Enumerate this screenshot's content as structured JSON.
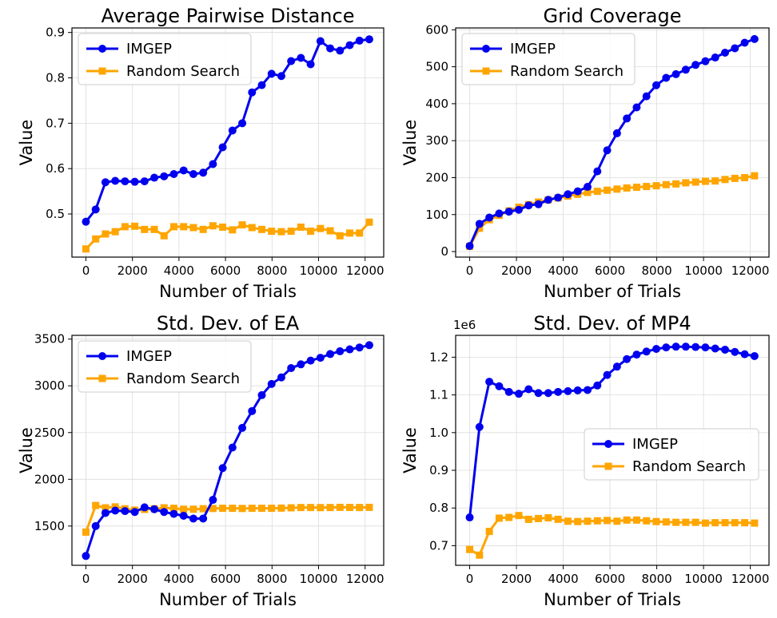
{
  "figure": {
    "legend_labels": [
      "IMGEP",
      "Random Search"
    ],
    "series_colors": {
      "IMGEP": "#0000ee",
      "Random Search": "#ffa500"
    }
  },
  "chart_data": [
    {
      "type": "line",
      "title": "Average Pairwise Distance",
      "xlabel": "Number of Trials",
      "ylabel": "Value",
      "xlim": [
        -600,
        12800
      ],
      "ylim": [
        0.405,
        0.91
      ],
      "xticks": [
        0,
        2000,
        4000,
        6000,
        8000,
        10000,
        12000
      ],
      "xtick_labels": [
        "0",
        "2000",
        "4000",
        "6000",
        "8000",
        "10000",
        "12000"
      ],
      "yticks": [
        0.5,
        0.6,
        0.7,
        0.8,
        0.9
      ],
      "ytick_labels": [
        "0.5",
        "0.6",
        "0.7",
        "0.8",
        "0.9"
      ],
      "legend_position": "upper-left",
      "grid": true,
      "x": [
        0,
        420,
        840,
        1260,
        1680,
        2100,
        2520,
        2940,
        3360,
        3780,
        4200,
        4620,
        5040,
        5460,
        5880,
        6300,
        6720,
        7140,
        7560,
        7980,
        8400,
        8820,
        9240,
        9660,
        10080,
        10500,
        10920,
        11340,
        11760,
        12180
      ],
      "series": [
        {
          "name": "IMGEP",
          "values": [
            0.483,
            0.51,
            0.57,
            0.573,
            0.572,
            0.571,
            0.572,
            0.58,
            0.583,
            0.588,
            0.596,
            0.588,
            0.591,
            0.61,
            0.647,
            0.684,
            0.7,
            0.768,
            0.784,
            0.809,
            0.804,
            0.837,
            0.844,
            0.83,
            0.881,
            0.865,
            0.86,
            0.872,
            0.882,
            0.885
          ]
        },
        {
          "name": "Random Search",
          "values": [
            0.423,
            0.445,
            0.456,
            0.461,
            0.472,
            0.473,
            0.466,
            0.466,
            0.452,
            0.472,
            0.472,
            0.47,
            0.466,
            0.474,
            0.471,
            0.465,
            0.476,
            0.47,
            0.466,
            0.462,
            0.461,
            0.462,
            0.471,
            0.462,
            0.468,
            0.463,
            0.452,
            0.458,
            0.458,
            0.482
          ]
        }
      ]
    },
    {
      "type": "line",
      "title": "Grid Coverage",
      "xlabel": "Number of Trials",
      "ylabel": "Value",
      "xlim": [
        -600,
        12800
      ],
      "ylim": [
        -15,
        605
      ],
      "xticks": [
        0,
        2000,
        4000,
        6000,
        8000,
        10000,
        12000
      ],
      "xtick_labels": [
        "0",
        "2000",
        "4000",
        "6000",
        "8000",
        "10000",
        "12000"
      ],
      "yticks": [
        0,
        100,
        200,
        300,
        400,
        500,
        600
      ],
      "ytick_labels": [
        "0",
        "100",
        "200",
        "300",
        "400",
        "500",
        "600"
      ],
      "legend_position": "upper-left",
      "grid": true,
      "x": [
        0,
        420,
        840,
        1260,
        1680,
        2100,
        2520,
        2940,
        3360,
        3780,
        4200,
        4620,
        5040,
        5460,
        5880,
        6300,
        6720,
        7140,
        7560,
        7980,
        8400,
        8820,
        9240,
        9660,
        10080,
        10500,
        10920,
        11340,
        11760,
        12180
      ],
      "series": [
        {
          "name": "IMGEP",
          "values": [
            15,
            75,
            92,
            103,
            108,
            113,
            125,
            128,
            140,
            146,
            155,
            163,
            175,
            217,
            274,
            320,
            360,
            390,
            420,
            450,
            470,
            480,
            492,
            505,
            515,
            525,
            538,
            550,
            565,
            575
          ]
        },
        {
          "name": "Random Search",
          "values": [
            14,
            63,
            86,
            98,
            110,
            120,
            127,
            134,
            140,
            145,
            150,
            155,
            160,
            163,
            166,
            169,
            172,
            174,
            176,
            178,
            181,
            183,
            186,
            188,
            190,
            191,
            195,
            198,
            200,
            205
          ]
        }
      ]
    },
    {
      "type": "line",
      "title": "Std. Dev. of EA",
      "xlabel": "Number of Trials",
      "ylabel": "Value",
      "xlim": [
        -600,
        12800
      ],
      "ylim": [
        1080,
        3540
      ],
      "xticks": [
        0,
        2000,
        4000,
        6000,
        8000,
        10000,
        12000
      ],
      "xtick_labels": [
        "0",
        "2000",
        "4000",
        "6000",
        "8000",
        "10000",
        "12000"
      ],
      "yticks": [
        1500,
        2000,
        2500,
        3000,
        3500
      ],
      "ytick_labels": [
        "1500",
        "2000",
        "2500",
        "3000",
        "3500"
      ],
      "legend_position": "upper-left",
      "grid": true,
      "x": [
        0,
        420,
        840,
        1260,
        1680,
        2100,
        2520,
        2940,
        3360,
        3780,
        4200,
        4620,
        5040,
        5460,
        5880,
        6300,
        6720,
        7140,
        7560,
        7980,
        8400,
        8820,
        9240,
        9660,
        10080,
        10500,
        10920,
        11340,
        11760,
        12180
      ],
      "series": [
        {
          "name": "IMGEP",
          "values": [
            1180,
            1500,
            1640,
            1665,
            1660,
            1650,
            1700,
            1680,
            1650,
            1630,
            1610,
            1580,
            1580,
            1780,
            2120,
            2340,
            2550,
            2730,
            2900,
            3020,
            3090,
            3190,
            3230,
            3270,
            3300,
            3340,
            3370,
            3390,
            3410,
            3435
          ]
        },
        {
          "name": "Random Search",
          "values": [
            1435,
            1720,
            1695,
            1705,
            1685,
            1670,
            1678,
            1685,
            1695,
            1690,
            1680,
            1680,
            1685,
            1688,
            1690,
            1690,
            1688,
            1690,
            1690,
            1690,
            1692,
            1695,
            1698,
            1698,
            1697,
            1698,
            1700,
            1699,
            1698,
            1700
          ]
        }
      ]
    },
    {
      "type": "line",
      "title": "Std. Dev. of MP4",
      "xlabel": "Number of Trials",
      "ylabel": "Value",
      "offset_label": "1e6",
      "xlim": [
        -600,
        12800
      ],
      "ylim": [
        0.648,
        1.258
      ],
      "xticks": [
        0,
        2000,
        4000,
        6000,
        8000,
        10000,
        12000
      ],
      "xtick_labels": [
        "0",
        "2000",
        "4000",
        "6000",
        "8000",
        "10000",
        "12000"
      ],
      "yticks": [
        0.7,
        0.8,
        0.9,
        1.0,
        1.1,
        1.2
      ],
      "ytick_labels": [
        "0.7",
        "0.8",
        "0.9",
        "1.0",
        "1.1",
        "1.2"
      ],
      "legend_position": "center-right",
      "grid": true,
      "x": [
        0,
        420,
        840,
        1260,
        1680,
        2100,
        2520,
        2940,
        3360,
        3780,
        4200,
        4620,
        5040,
        5460,
        5880,
        6300,
        6720,
        7140,
        7560,
        7980,
        8400,
        8820,
        9240,
        9660,
        10080,
        10500,
        10920,
        11340,
        11760,
        12180
      ],
      "series": [
        {
          "name": "IMGEP",
          "values": [
            0.775,
            1.015,
            1.135,
            1.123,
            1.108,
            1.103,
            1.115,
            1.105,
            1.105,
            1.108,
            1.11,
            1.112,
            1.113,
            1.125,
            1.153,
            1.175,
            1.195,
            1.207,
            1.215,
            1.222,
            1.226,
            1.228,
            1.228,
            1.227,
            1.226,
            1.223,
            1.22,
            1.214,
            1.208,
            1.203
          ]
        },
        {
          "name": "Random Search",
          "values": [
            0.69,
            0.675,
            0.738,
            0.773,
            0.775,
            0.78,
            0.77,
            0.772,
            0.774,
            0.77,
            0.765,
            0.764,
            0.765,
            0.766,
            0.767,
            0.765,
            0.768,
            0.768,
            0.766,
            0.764,
            0.763,
            0.762,
            0.762,
            0.762,
            0.76,
            0.761,
            0.761,
            0.761,
            0.761,
            0.76
          ]
        }
      ]
    }
  ]
}
